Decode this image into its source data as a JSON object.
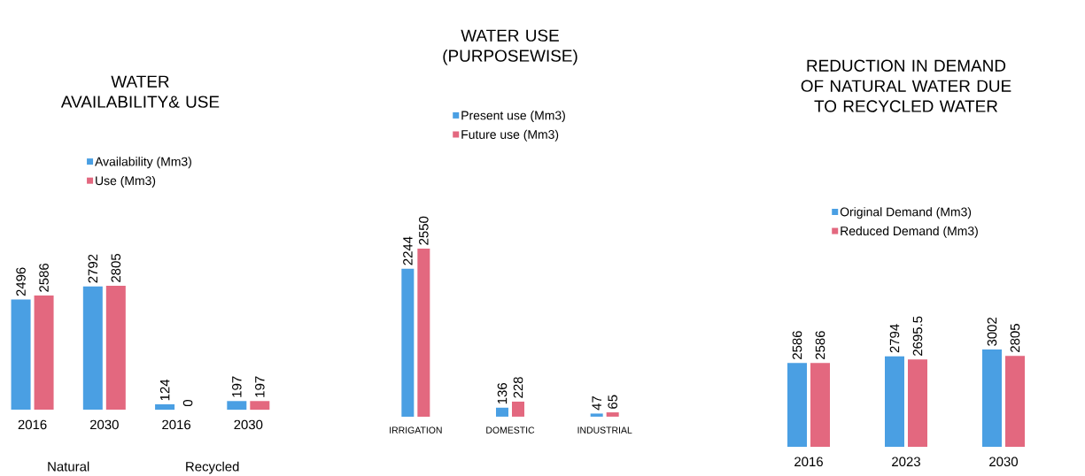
{
  "chart_data": [
    {
      "type": "bar",
      "title": "WATER AVAILABILITY& USE",
      "categories": [
        "2016",
        "2030",
        "2016",
        "2030"
      ],
      "series": [
        {
          "name": "Availability (Mm3)",
          "color": "#4a9fe3",
          "values": [
            2496,
            2792,
            124,
            197
          ]
        },
        {
          "name": "Use (Mm3)",
          "color": "#e3687f",
          "values": [
            2586,
            2805,
            0,
            197
          ]
        }
      ],
      "data_labels": true,
      "legend": "top",
      "annotations": [
        "Natural",
        "Recycled"
      ]
    },
    {
      "type": "bar",
      "title": "WATER USE (PURPOSEWISE)",
      "categories": [
        "IRRIGATION",
        "DOMESTIC",
        "INDUSTRIAL"
      ],
      "series": [
        {
          "name": "Present use (Mm3)",
          "color": "#4a9fe3",
          "values": [
            2244,
            136,
            47
          ]
        },
        {
          "name": "Future use (Mm3)",
          "color": "#e3687f",
          "values": [
            2550,
            228,
            65
          ]
        }
      ],
      "data_labels": true,
      "legend": "top"
    },
    {
      "type": "bar",
      "title": "REDUCTION IN DEMAND OF NATURAL WATER DUE TO RECYCLED WATER",
      "categories": [
        "2016",
        "2023",
        "2030"
      ],
      "series": [
        {
          "name": "Original Demand (Mm3)",
          "color": "#4a9fe3",
          "values": [
            2586,
            2794,
            3002
          ]
        },
        {
          "name": "Reduced Demand (Mm3)",
          "color": "#e3687f",
          "values": [
            2586,
            2695.5,
            2805
          ]
        }
      ],
      "data_labels": true,
      "legend": "top"
    }
  ]
}
